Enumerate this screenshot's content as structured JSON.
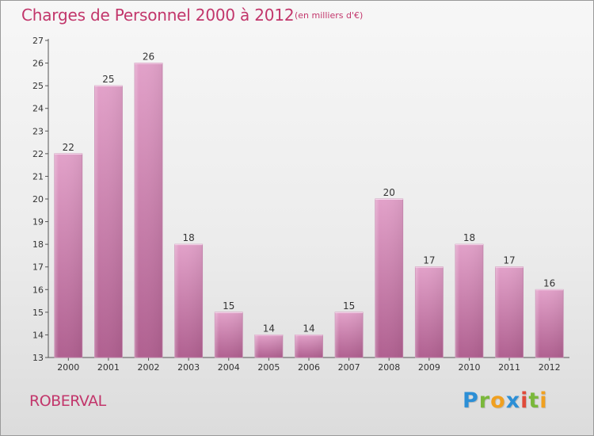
{
  "chart_data": {
    "type": "bar",
    "title": "Charges de Personnel 2000 à 2012",
    "subtitle": "(en milliers d'€)",
    "categories": [
      "2000",
      "2001",
      "2002",
      "2003",
      "2004",
      "2005",
      "2006",
      "2007",
      "2008",
      "2009",
      "2010",
      "2011",
      "2012"
    ],
    "values": [
      22,
      25,
      26,
      18,
      15,
      14,
      14,
      15,
      20,
      17,
      18,
      17,
      16
    ],
    "ylim": [
      13,
      27
    ],
    "yticks": [
      13,
      14,
      15,
      16,
      17,
      18,
      19,
      20,
      21,
      22,
      23,
      24,
      25,
      26,
      27
    ],
    "grid": false,
    "legend": "none",
    "colors": {
      "bar": "#d887b8",
      "bar_dark": "#b05f92",
      "title": "#c2366b"
    }
  },
  "location": "ROBERVAL",
  "logo": {
    "text": "Proxiti",
    "letters": [
      {
        "ch": "P",
        "color": "#2c8fd6"
      },
      {
        "ch": "r",
        "color": "#7ab83a"
      },
      {
        "ch": "o",
        "color": "#f0a020"
      },
      {
        "ch": "x",
        "color": "#2c8fd6"
      },
      {
        "ch": "i",
        "color": "#e04a3a"
      },
      {
        "ch": "t",
        "color": "#7ab83a"
      },
      {
        "ch": "i",
        "color": "#f0a020"
      }
    ]
  }
}
